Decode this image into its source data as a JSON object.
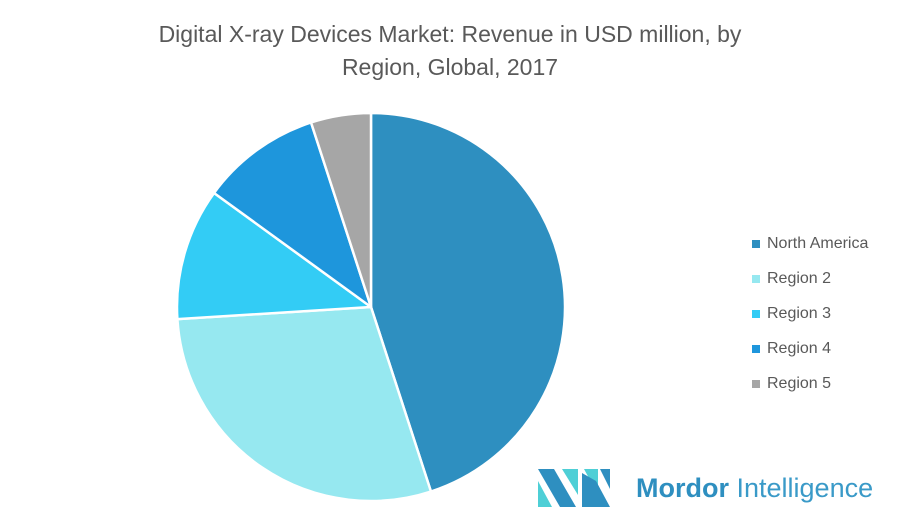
{
  "chart_data": {
    "type": "pie",
    "title": "Digital X-ray Devices Market: Revenue in USD million, by Region, Global, 2017",
    "title_lines": [
      "Digital X-ray Devices Market: Revenue in USD million, by",
      "Region, Global, 2017"
    ],
    "categories": [
      "North America",
      "Region 2",
      "Region 3",
      "Region 4",
      "Region 5"
    ],
    "values": [
      45,
      29,
      11,
      10,
      5
    ],
    "value_unit": "percent share (estimated)",
    "colors": [
      "#2E8FC0",
      "#96E8F0",
      "#33CCF5",
      "#1E96DC",
      "#A6A6A6"
    ],
    "start_angle": "12 o'clock",
    "direction": "clockwise",
    "legend_position": "right"
  },
  "logo": {
    "bold": "Mordor",
    "light": "Intelligence"
  }
}
